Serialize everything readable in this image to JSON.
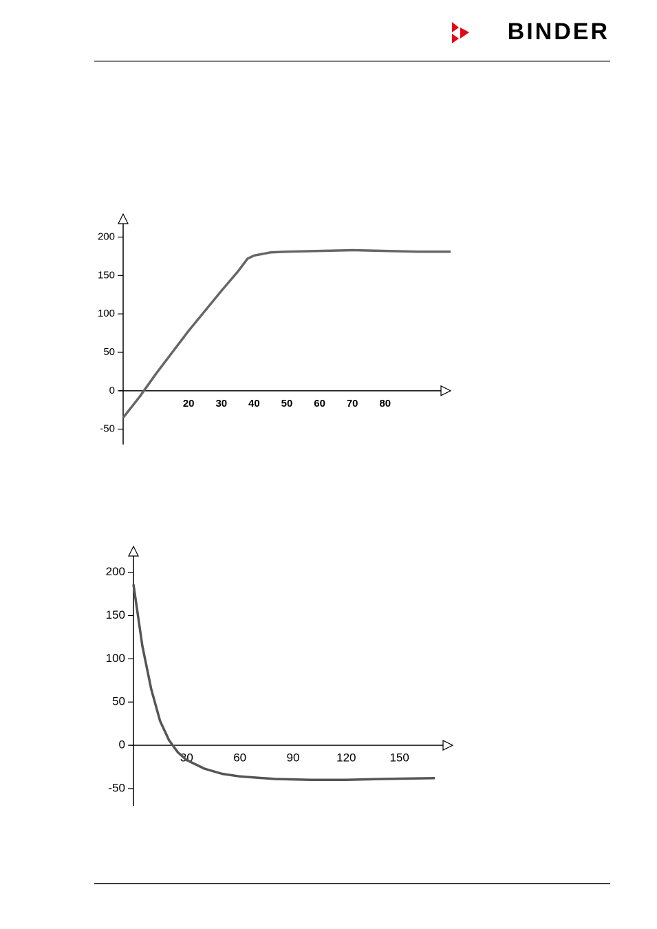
{
  "header": {
    "logo": "BINDER"
  },
  "chart_data": [
    {
      "type": "line",
      "x": [
        0,
        5,
        10,
        15,
        20,
        25,
        30,
        35,
        38,
        40,
        45,
        50,
        60,
        70,
        80,
        90,
        100
      ],
      "values": [
        -35,
        -8,
        22,
        50,
        78,
        104,
        130,
        155,
        172,
        176,
        180,
        181,
        182,
        183,
        182,
        181,
        181
      ],
      "color": "#666666",
      "xlim": [
        0,
        100
      ],
      "ylim": [
        -70,
        230
      ],
      "xticks": [
        20,
        30,
        40,
        50,
        60,
        70,
        80
      ],
      "yticks": [
        -50,
        0,
        50,
        100,
        150,
        200
      ],
      "grid": false
    },
    {
      "type": "line",
      "x": [
        0,
        5,
        10,
        15,
        20,
        25,
        30,
        40,
        50,
        60,
        80,
        100,
        120,
        140,
        170
      ],
      "values": [
        186,
        115,
        65,
        28,
        6,
        -8,
        -17,
        -27,
        -33,
        -36,
        -39,
        -40,
        -40,
        -39,
        -38
      ],
      "color": "#555555",
      "xlim": [
        0,
        180
      ],
      "ylim": [
        -70,
        230
      ],
      "xticks": [
        30,
        60,
        90,
        120,
        150
      ],
      "yticks": [
        -50,
        0,
        50,
        100,
        150,
        200
      ],
      "grid": false
    }
  ]
}
